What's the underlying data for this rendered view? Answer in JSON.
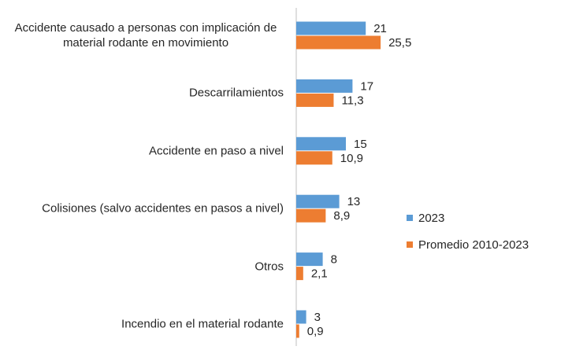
{
  "chart_data": {
    "type": "hbar",
    "categories": [
      "Accidente causado a personas con implicación de material rodante en movimiento",
      "Descarrilamientos",
      "Accidente en paso a nivel",
      "Colisiones (salvo accidentes en pasos a nivel)",
      "Otros",
      "Incendio en el material rodante"
    ],
    "series": [
      {
        "name": "2023",
        "color": "#5b9bd5",
        "values": [
          21,
          17,
          15,
          13,
          8,
          3
        ],
        "value_labels": [
          "21",
          "17",
          "15",
          "13",
          "8",
          "3"
        ]
      },
      {
        "name": "Promedio 2010-2023",
        "color": "#ed7d31",
        "values": [
          25.5,
          11.3,
          10.9,
          8.9,
          2.1,
          0.9
        ],
        "value_labels": [
          "25,5",
          "11,3",
          "10,9",
          "8,9",
          "2,1",
          "0,9"
        ]
      }
    ],
    "xlim": [
      0,
      30
    ],
    "legend": "right"
  }
}
